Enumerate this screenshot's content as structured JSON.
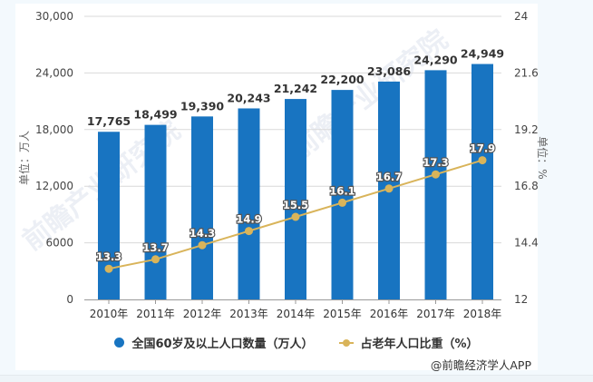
{
  "chart_data": {
    "type": "bar",
    "title": "",
    "categories": [
      "2010年",
      "2011年",
      "2012年",
      "2013年",
      "2014年",
      "2015年",
      "2016年",
      "2017年",
      "2018年"
    ],
    "series": [
      {
        "name": "全国60岁及以上人口数量（万人）",
        "type": "bar",
        "axis": "left",
        "color": "#1874c1",
        "values": [
          17765,
          18499,
          19390,
          20243,
          21242,
          22200,
          23086,
          24290,
          24949
        ],
        "labels": [
          "17,765",
          "18,499",
          "19,390",
          "20,243",
          "21,242",
          "22,200",
          "23,086",
          "24,290",
          "24,949"
        ]
      },
      {
        "name": "占老年人口比重（%）",
        "type": "line",
        "axis": "right",
        "color": "#d9b45a",
        "values": [
          13.3,
          13.7,
          14.3,
          14.9,
          15.5,
          16.1,
          16.7,
          17.3,
          17.9
        ],
        "labels": [
          "13.3",
          "13.7",
          "14.3",
          "14.9",
          "15.5",
          "16.1",
          "16.7",
          "17.3",
          "17.9"
        ]
      }
    ],
    "y_left": {
      "label": "单位：万人",
      "range": [
        0,
        30000
      ],
      "ticks": [
        0,
        6000,
        12000,
        18000,
        24000,
        30000
      ],
      "tick_labels": [
        "0",
        "6000",
        "12,000",
        "18,000",
        "24,000",
        "30,000"
      ]
    },
    "y_right": {
      "label": "单位：%",
      "range": [
        12,
        24
      ],
      "ticks": [
        12,
        14.4,
        16.8,
        19.2,
        21.6,
        24
      ],
      "tick_labels": [
        "12",
        "14.4",
        "16.8",
        "19.2",
        "21.6",
        "24"
      ]
    },
    "grid": true,
    "legend_position": "bottom-center"
  },
  "legend": {
    "bar_label": "全国60岁及以上人口数量（万人）",
    "line_label": "占老年人口比重（%）"
  },
  "credit": "@前瞻经济学人APP",
  "watermarks": [
    "前瞻产业研究院",
    "前瞻产业研究院"
  ]
}
